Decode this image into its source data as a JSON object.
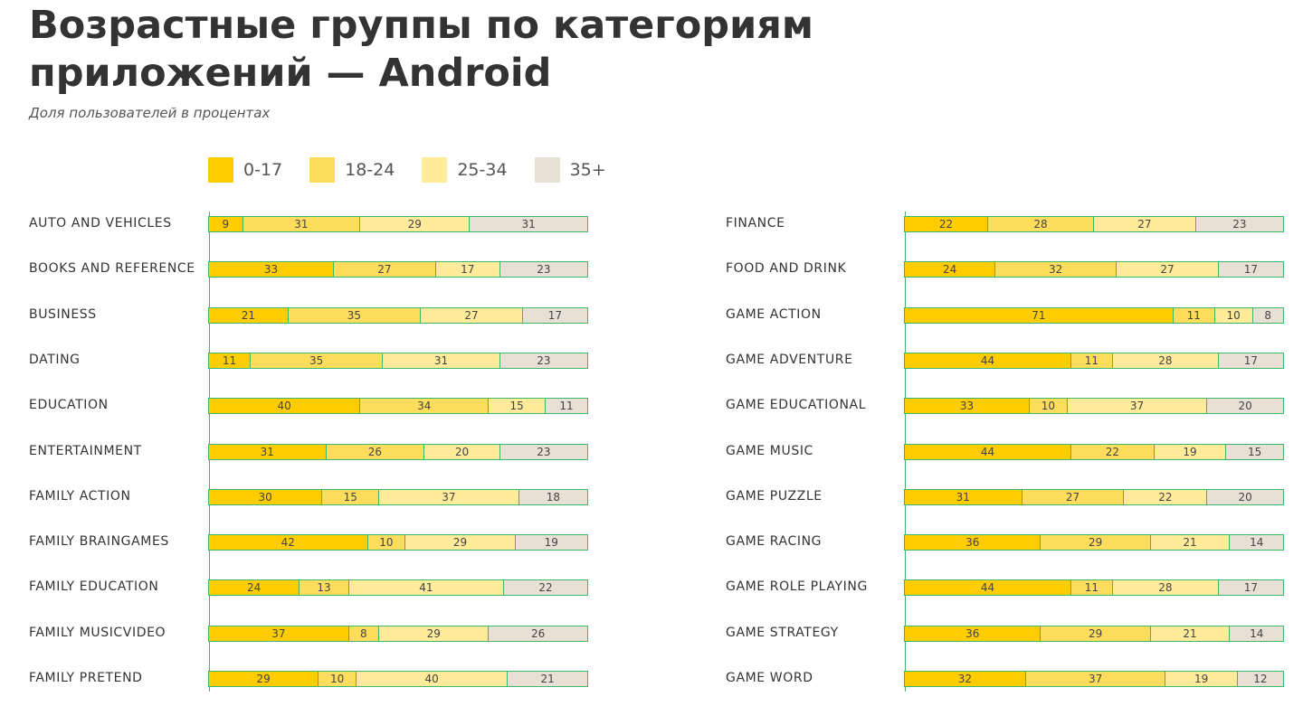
{
  "header": {
    "title": "Возрастные группы по категориям приложений — Android",
    "subtitle": "Доля пользователей в процентах"
  },
  "colors": {
    "0-17": "#ffcc00",
    "18-24": "#ffdd5c",
    "25-34": "#ffeb99",
    "35+": "#e8e0d4",
    "outline": "#3db86a"
  },
  "legend": {
    "items": [
      {
        "label": "0-17",
        "color": "#ffcc00"
      },
      {
        "label": "18-24",
        "color": "#ffdd5c"
      },
      {
        "label": "25-34",
        "color": "#ffeb99"
      },
      {
        "label": "35+",
        "color": "#e8e0d4"
      }
    ]
  },
  "chart_data": [
    {
      "type": "bar",
      "stacked": true,
      "orientation": "horizontal",
      "categories": [
        "AUTO AND VEHICLES",
        "BOOKS AND REFERENCE",
        "BUSINESS",
        "DATING",
        "EDUCATION",
        "ENTERTAINMENT",
        "FAMILY ACTION",
        "FAMILY BRAINGAMES",
        "FAMILY EDUCATION",
        "FAMILY MUSICVIDEO",
        "FAMILY PRETEND"
      ],
      "series": [
        {
          "name": "0-17",
          "values": [
            9,
            33,
            21,
            11,
            40,
            31,
            30,
            42,
            24,
            37,
            29
          ]
        },
        {
          "name": "18-24",
          "values": [
            31,
            27,
            35,
            35,
            34,
            26,
            15,
            10,
            13,
            8,
            10
          ]
        },
        {
          "name": "25-34",
          "values": [
            29,
            17,
            27,
            31,
            15,
            20,
            37,
            29,
            41,
            29,
            40
          ]
        },
        {
          "name": "35+",
          "values": [
            31,
            23,
            17,
            23,
            11,
            23,
            18,
            19,
            22,
            26,
            21
          ]
        }
      ]
    },
    {
      "type": "bar",
      "stacked": true,
      "orientation": "horizontal",
      "categories": [
        "FINANCE",
        "FOOD AND DRINK",
        "GAME ACTION",
        "GAME ADVENTURE",
        "GAME EDUCATIONAL",
        "GAME MUSIC",
        "GAME PUZZLE",
        "GAME RACING",
        "GAME ROLE PLAYING",
        "GAME STRATEGY",
        "GAME WORD"
      ],
      "series": [
        {
          "name": "0-17",
          "values": [
            22,
            24,
            71,
            44,
            33,
            44,
            31,
            36,
            44,
            36,
            32
          ]
        },
        {
          "name": "18-24",
          "values": [
            28,
            32,
            11,
            11,
            10,
            22,
            27,
            29,
            11,
            29,
            37
          ]
        },
        {
          "name": "25-34",
          "values": [
            27,
            27,
            10,
            28,
            37,
            19,
            22,
            21,
            28,
            21,
            19
          ]
        },
        {
          "name": "35+",
          "values": [
            23,
            17,
            8,
            17,
            20,
            15,
            20,
            14,
            17,
            14,
            12
          ]
        }
      ]
    }
  ]
}
